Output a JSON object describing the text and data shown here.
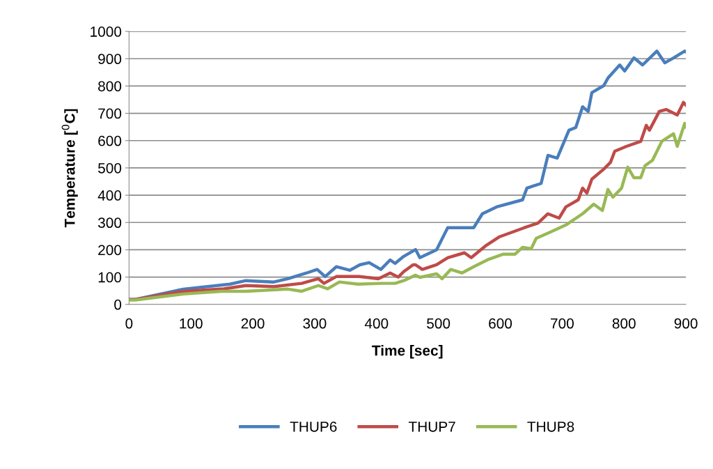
{
  "chart_data": {
    "type": "line",
    "xlabel": "Time [sec]",
    "ylabel": "Temperature [$^{0}$C]",
    "xlim": [
      0,
      900
    ],
    "ylim": [
      0,
      1000
    ],
    "xticks": [
      0,
      100,
      200,
      300,
      400,
      500,
      600,
      700,
      800,
      900
    ],
    "yticks": [
      0,
      100,
      200,
      300,
      400,
      500,
      600,
      700,
      800,
      900,
      1000
    ],
    "grid": "y",
    "legend": "bottom",
    "marker": "none",
    "line_style": "solid",
    "series": [
      {
        "name": "THUP6",
        "color": "#4a7ebb",
        "x": [
          0,
          10,
          88,
          163,
          189,
          234,
          257,
          287,
          304,
          317,
          335,
          357,
          373,
          388,
          407,
          422,
          430,
          444,
          463,
          470,
          497,
          515,
          557,
          571,
          594,
          636,
          643,
          666,
          677,
          692,
          711,
          722,
          733,
          742,
          748,
          767,
          774,
          793,
          801,
          816,
          830,
          853,
          866,
          880,
          898,
          900
        ],
        "values": [
          18,
          18,
          56,
          74,
          87,
          82,
          94,
          115,
          128,
          102,
          138,
          125,
          145,
          153,
          128,
          163,
          150,
          176,
          201,
          171,
          200,
          281,
          281,
          332,
          357,
          383,
          426,
          443,
          546,
          536,
          638,
          648,
          724,
          707,
          776,
          801,
          829,
          877,
          855,
          903,
          877,
          928,
          885,
          903,
          928,
          925
        ]
      },
      {
        "name": "THUP7",
        "color": "#be4b48",
        "x": [
          0,
          10,
          88,
          153,
          189,
          234,
          279,
          306,
          315,
          335,
          372,
          403,
          422,
          435,
          444,
          459,
          463,
          474,
          497,
          515,
          542,
          553,
          576,
          598,
          639,
          661,
          677,
          695,
          706,
          726,
          733,
          740,
          748,
          767,
          778,
          785,
          804,
          827,
          836,
          841,
          857,
          868,
          886,
          896,
          900
        ],
        "values": [
          18,
          18,
          48,
          57,
          69,
          65,
          77,
          94,
          77,
          102,
          102,
          94,
          115,
          100,
          120,
          145,
          145,
          128,
          145,
          171,
          189,
          171,
          214,
          247,
          281,
          298,
          332,
          316,
          357,
          383,
          426,
          408,
          459,
          495,
          520,
          561,
          579,
          597,
          656,
          638,
          707,
          714,
          694,
          740,
          730
        ]
      },
      {
        "name": "THUP8",
        "color": "#98b954",
        "x": [
          0,
          10,
          88,
          150,
          189,
          257,
          279,
          306,
          321,
          340,
          370,
          407,
          430,
          444,
          463,
          470,
          497,
          506,
          520,
          538,
          557,
          579,
          605,
          624,
          636,
          650,
          658,
          681,
          706,
          733,
          751,
          765,
          774,
          782,
          796,
          806,
          816,
          827,
          834,
          846,
          861,
          880,
          886,
          898,
          900
        ],
        "values": [
          16,
          16,
          38,
          48,
          48,
          56,
          48,
          69,
          57,
          82,
          74,
          77,
          77,
          87,
          107,
          99,
          112,
          94,
          128,
          115,
          138,
          163,
          184,
          184,
          209,
          204,
          242,
          265,
          291,
          332,
          367,
          344,
          421,
          393,
          426,
          503,
          464,
          464,
          508,
          528,
          597,
          625,
          579,
          663,
          650
        ]
      }
    ]
  }
}
